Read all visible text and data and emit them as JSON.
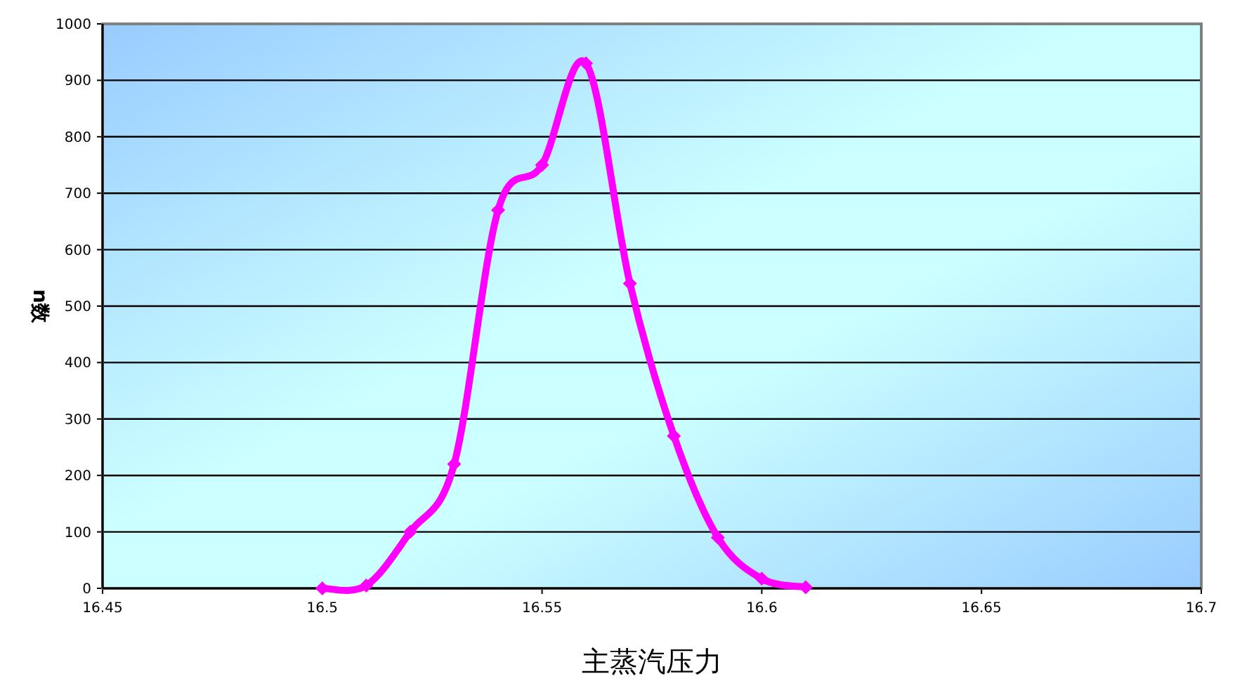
{
  "chart_data": {
    "type": "line",
    "xlabel": "主蒸汽压力",
    "ylabel": "n数",
    "x": [
      16.5,
      16.51,
      16.52,
      16.53,
      16.54,
      16.55,
      16.56,
      16.57,
      16.58,
      16.59,
      16.6,
      16.61
    ],
    "series": [
      {
        "color": "#ff00ff",
        "values": [
          0,
          5,
          100,
          220,
          670,
          750,
          930,
          540,
          270,
          90,
          17,
          2
        ]
      }
    ],
    "xlim": [
      16.45,
      16.7
    ],
    "xticks": [
      16.45,
      16.5,
      16.55,
      16.6,
      16.65,
      16.7
    ],
    "ylim": [
      0,
      1000
    ],
    "yticks": [
      0,
      100,
      200,
      300,
      400,
      500,
      600,
      700,
      800,
      900,
      1000
    ],
    "grid": "y",
    "marker": "diamond",
    "line_style": "solid"
  }
}
